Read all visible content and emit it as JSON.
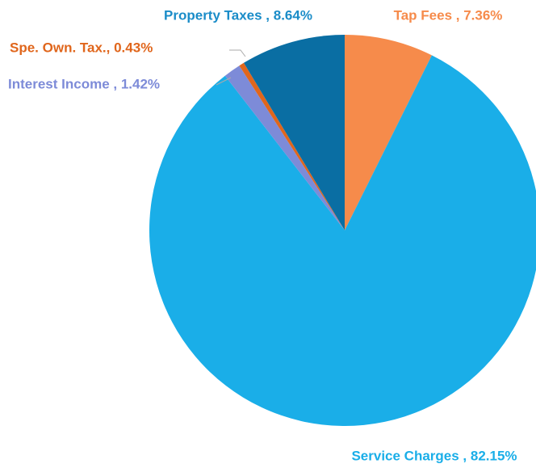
{
  "chart_data": {
    "type": "pie",
    "categories": [
      "Tap Fees",
      "Service Charges",
      "Interest Income",
      "Spe. Own. Tax.",
      "Property Taxes"
    ],
    "values": [
      7.36,
      82.15,
      1.42,
      0.43,
      8.64
    ],
    "value_labels": [
      "Tap Fees , 7.36%",
      "Service Charges , 82.15%",
      "Interest Income , 1.42%",
      "Spe. Own. Tax., 0.43%",
      "Property Taxes , 8.64%"
    ],
    "colors": [
      "#f68b4b",
      "#1aaee8",
      "#7d8bd8",
      "#e0661c",
      "#0a6ea3"
    ],
    "label_colors": [
      "#f68b4b",
      "#1aaee8",
      "#7d8bd8",
      "#e0661c",
      "#1a8cc8"
    ]
  }
}
